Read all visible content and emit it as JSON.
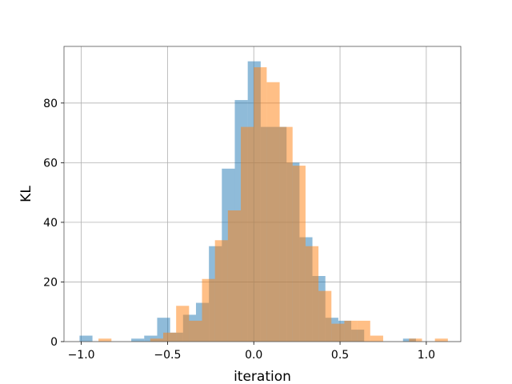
{
  "chart_data": {
    "type": "histogram",
    "title": "",
    "xlabel": "iteration",
    "ylabel": "KL",
    "xlim": [
      -1.1,
      1.2
    ],
    "ylim": [
      0,
      99
    ],
    "xticks": [
      -1.0,
      -0.5,
      0.0,
      0.5,
      1.0
    ],
    "xtick_labels": [
      "−1.0",
      "−0.5",
      "0.0",
      "0.5",
      "1.0"
    ],
    "yticks": [
      0,
      20,
      40,
      60,
      80
    ],
    "ytick_labels": [
      "0",
      "20",
      "40",
      "60",
      "80"
    ],
    "grid": true,
    "legend": "none",
    "series": [
      {
        "color": "#1f77b4",
        "alpha": 0.5,
        "bins": [
          {
            "x0": -1.01,
            "x1": -0.935,
            "count": 2
          },
          {
            "x0": -0.935,
            "x1": -0.86,
            "count": 0
          },
          {
            "x0": -0.86,
            "x1": -0.785,
            "count": 0
          },
          {
            "x0": -0.785,
            "x1": -0.71,
            "count": 0
          },
          {
            "x0": -0.71,
            "x1": -0.635,
            "count": 1
          },
          {
            "x0": -0.635,
            "x1": -0.56,
            "count": 2
          },
          {
            "x0": -0.56,
            "x1": -0.485,
            "count": 8
          },
          {
            "x0": -0.485,
            "x1": -0.41,
            "count": 3
          },
          {
            "x0": -0.41,
            "x1": -0.335,
            "count": 9
          },
          {
            "x0": -0.335,
            "x1": -0.26,
            "count": 13
          },
          {
            "x0": -0.26,
            "x1": -0.185,
            "count": 32
          },
          {
            "x0": -0.185,
            "x1": -0.11,
            "count": 58
          },
          {
            "x0": -0.11,
            "x1": -0.035,
            "count": 81
          },
          {
            "x0": -0.035,
            "x1": 0.04,
            "count": 94
          },
          {
            "x0": 0.04,
            "x1": 0.115,
            "count": 72
          },
          {
            "x0": 0.115,
            "x1": 0.19,
            "count": 72
          },
          {
            "x0": 0.19,
            "x1": 0.265,
            "count": 60
          },
          {
            "x0": 0.265,
            "x1": 0.34,
            "count": 35
          },
          {
            "x0": 0.34,
            "x1": 0.415,
            "count": 22
          },
          {
            "x0": 0.415,
            "x1": 0.49,
            "count": 8
          },
          {
            "x0": 0.49,
            "x1": 0.565,
            "count": 7
          },
          {
            "x0": 0.565,
            "x1": 0.64,
            "count": 4
          },
          {
            "x0": 0.64,
            "x1": 0.715,
            "count": 0
          },
          {
            "x0": 0.715,
            "x1": 0.79,
            "count": 0
          },
          {
            "x0": 0.79,
            "x1": 0.865,
            "count": 0
          },
          {
            "x0": 0.865,
            "x1": 0.94,
            "count": 1
          }
        ]
      },
      {
        "color": "#ff7f0e",
        "alpha": 0.5,
        "bins": [
          {
            "x0": -0.9,
            "x1": -0.825,
            "count": 1
          },
          {
            "x0": -0.825,
            "x1": -0.75,
            "count": 0
          },
          {
            "x0": -0.75,
            "x1": -0.675,
            "count": 0
          },
          {
            "x0": -0.675,
            "x1": -0.6,
            "count": 0
          },
          {
            "x0": -0.6,
            "x1": -0.525,
            "count": 1
          },
          {
            "x0": -0.525,
            "x1": -0.45,
            "count": 3
          },
          {
            "x0": -0.45,
            "x1": -0.375,
            "count": 12
          },
          {
            "x0": -0.375,
            "x1": -0.3,
            "count": 7
          },
          {
            "x0": -0.3,
            "x1": -0.225,
            "count": 21
          },
          {
            "x0": -0.225,
            "x1": -0.15,
            "count": 34
          },
          {
            "x0": -0.15,
            "x1": -0.075,
            "count": 44
          },
          {
            "x0": -0.075,
            "x1": 0.0,
            "count": 72
          },
          {
            "x0": 0.0,
            "x1": 0.075,
            "count": 92
          },
          {
            "x0": 0.075,
            "x1": 0.15,
            "count": 87
          },
          {
            "x0": 0.15,
            "x1": 0.225,
            "count": 72
          },
          {
            "x0": 0.225,
            "x1": 0.3,
            "count": 59
          },
          {
            "x0": 0.3,
            "x1": 0.375,
            "count": 32
          },
          {
            "x0": 0.375,
            "x1": 0.45,
            "count": 17
          },
          {
            "x0": 0.45,
            "x1": 0.525,
            "count": 6
          },
          {
            "x0": 0.525,
            "x1": 0.6,
            "count": 7
          },
          {
            "x0": 0.6,
            "x1": 0.675,
            "count": 7
          },
          {
            "x0": 0.675,
            "x1": 0.75,
            "count": 2
          },
          {
            "x0": 0.75,
            "x1": 0.825,
            "count": 0
          },
          {
            "x0": 0.825,
            "x1": 0.9,
            "count": 0
          },
          {
            "x0": 0.9,
            "x1": 0.975,
            "count": 1
          },
          {
            "x0": 0.975,
            "x1": 1.05,
            "count": 0
          },
          {
            "x0": 1.05,
            "x1": 1.125,
            "count": 1
          }
        ]
      }
    ]
  }
}
